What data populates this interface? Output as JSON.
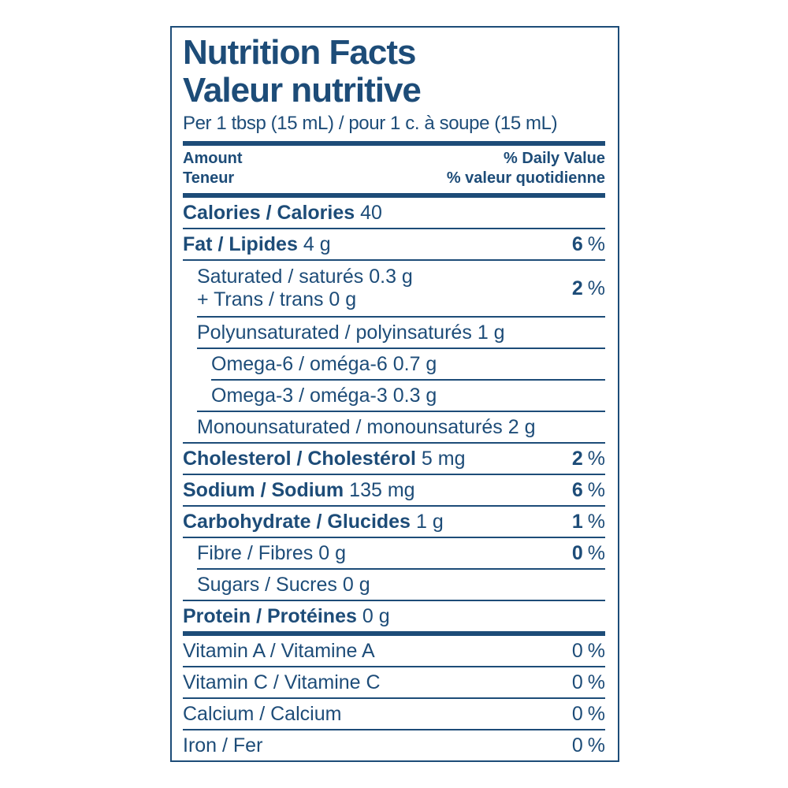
{
  "colors": {
    "ink": "#1d4c78",
    "background": "#ffffff"
  },
  "header": {
    "title_en": "Nutrition Facts",
    "title_fr": "Valeur nutritive",
    "serving": "Per 1 tbsp (15 mL) / pour 1 c. à soupe (15 mL)"
  },
  "columns": {
    "amount_en": "Amount",
    "amount_fr": "Teneur",
    "daily_value_en": "% Daily Value",
    "daily_value_fr": "% valeur quotidienne"
  },
  "percent_sign": "%",
  "rows": [
    {
      "label": "Calories / Calories",
      "amount": "40",
      "dv": null,
      "indent": 0,
      "bold": true
    },
    {
      "label": "Fat / Lipides",
      "amount": "4 g",
      "dv": "6",
      "indent": 0,
      "bold": true
    },
    {
      "label": "Saturated / saturés",
      "amount": "0.3 g",
      "line2": "+ Trans / trans 0 g",
      "dv": "2",
      "indent": 1,
      "bold": false
    },
    {
      "label": "Polyunsaturated / polyinsaturés",
      "amount": "1 g",
      "dv": null,
      "indent": 1,
      "bold": false
    },
    {
      "label": "Omega-6 / oméga-6",
      "amount": "0.7 g",
      "dv": null,
      "indent": 2,
      "bold": false
    },
    {
      "label": "Omega-3 / oméga-3",
      "amount": "0.3 g",
      "dv": null,
      "indent": 2,
      "bold": false
    },
    {
      "label": "Monounsaturated / monounsaturés",
      "amount": "2 g",
      "dv": null,
      "indent": 1,
      "bold": false
    },
    {
      "label": "Cholesterol / Cholestérol",
      "amount": "5 mg",
      "dv": "2",
      "indent": 0,
      "bold": true
    },
    {
      "label": "Sodium / Sodium",
      "amount": "135 mg",
      "dv": "6",
      "indent": 0,
      "bold": true
    },
    {
      "label": "Carbohydrate / Glucides",
      "amount": "1 g",
      "dv": "1",
      "indent": 0,
      "bold": true
    },
    {
      "label": "Fibre / Fibres",
      "amount": "0 g",
      "dv": "0",
      "indent": 1,
      "bold": false
    },
    {
      "label": "Sugars / Sucres",
      "amount": "0 g",
      "dv": null,
      "indent": 1,
      "bold": false
    },
    {
      "label": "Protein / Protéines",
      "amount": "0 g",
      "dv": null,
      "indent": 0,
      "bold": true
    }
  ],
  "micronutrients": [
    {
      "label": "Vitamin A / Vitamine A",
      "dv": "0",
      "indent": 0,
      "bold": false
    },
    {
      "label": "Vitamin C / Vitamine C",
      "dv": "0",
      "indent": 0,
      "bold": false
    },
    {
      "label": "Calcium / Calcium",
      "dv": "0",
      "indent": 0,
      "bold": false
    },
    {
      "label": "Iron / Fer",
      "dv": "0",
      "indent": 0,
      "bold": false
    }
  ]
}
